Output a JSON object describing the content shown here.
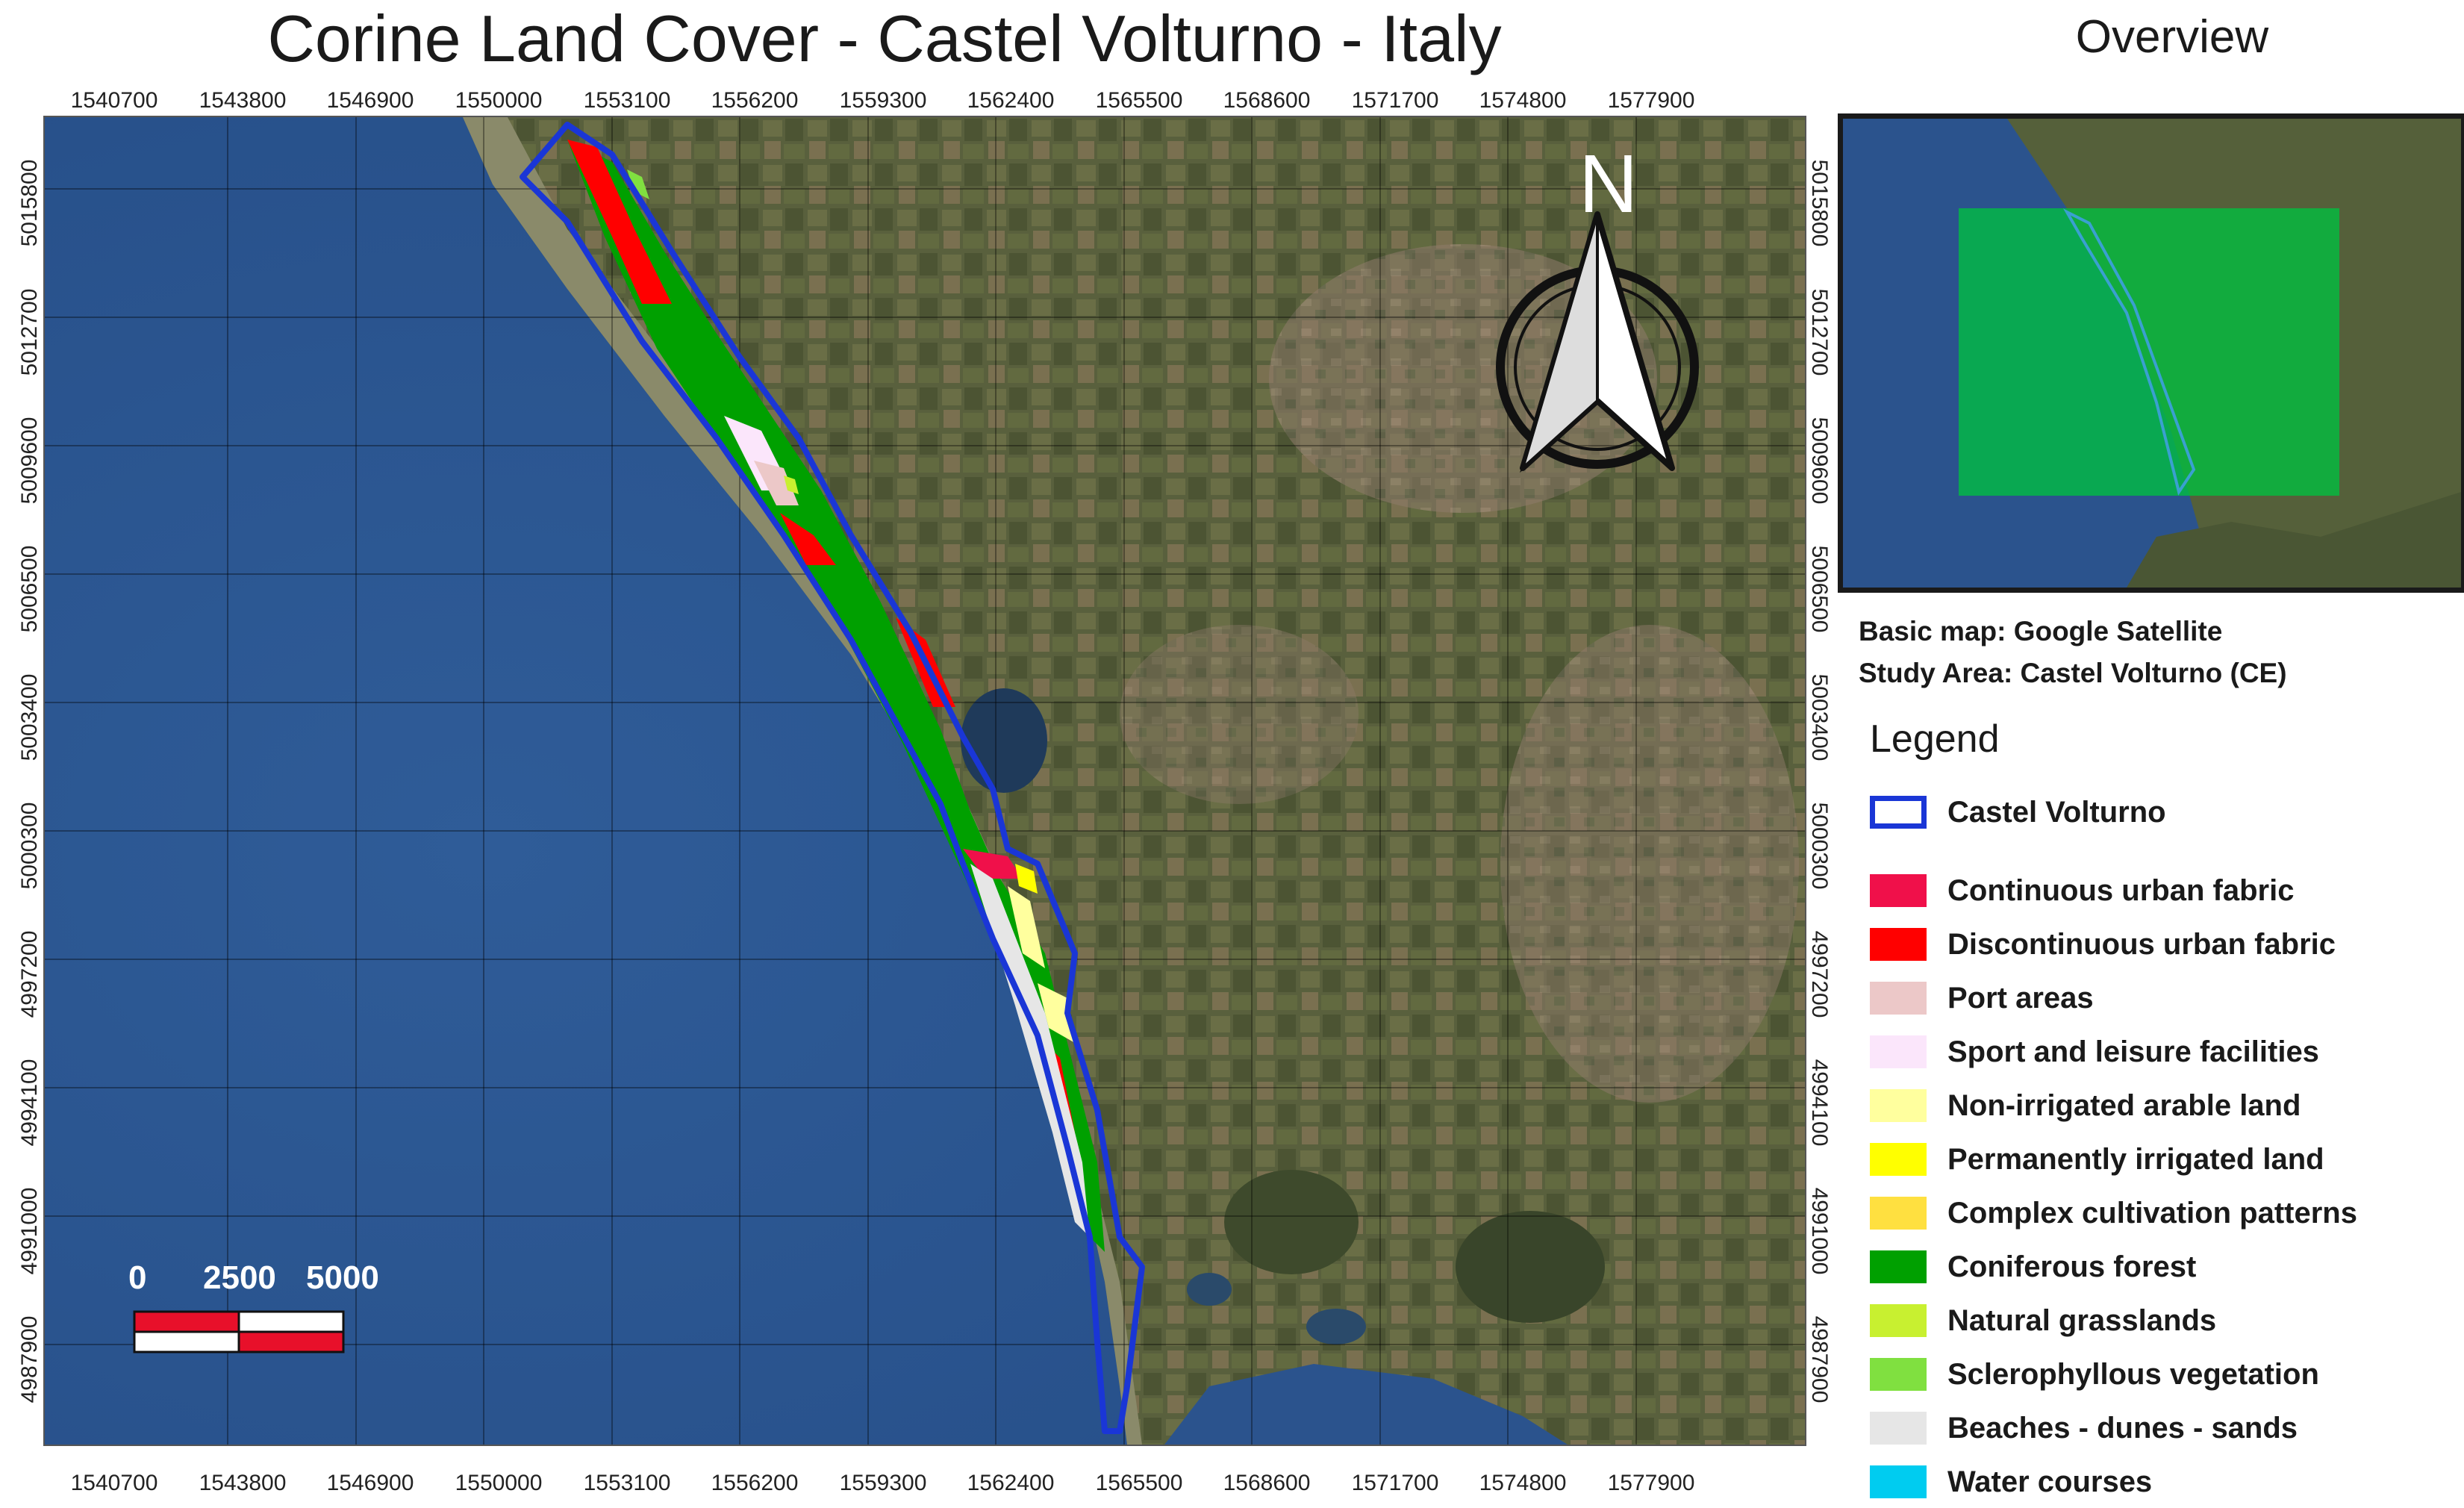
{
  "map": {
    "title": "Corine Land Cover - Castel Volturno - Italy",
    "x_ticks": [
      "1540700",
      "1543800",
      "1546900",
      "1550000",
      "1553100",
      "1556200",
      "1559300",
      "1562400",
      "1565500",
      "1568600",
      "1571700",
      "1574800",
      "1577900"
    ],
    "y_ticks": [
      "5015800",
      "5012700",
      "5009600",
      "5006500",
      "5003400",
      "5000300",
      "4997200",
      "4994100",
      "4991000",
      "4987900"
    ],
    "north_label": "N",
    "scale_bar": {
      "labels": [
        "0",
        "2500",
        "5000"
      ],
      "colors": [
        "#e8102a",
        "#ffffff"
      ]
    },
    "colors": {
      "sea": "#2b538d",
      "land": "#5a5e3c",
      "boundary": "#1a36d6"
    }
  },
  "overview": {
    "title": "Overview",
    "highlight_color": "#00c040"
  },
  "info": {
    "basic_map": "Basic map: Google Satellite",
    "study_area": "Study Area: Castel Volturno (CE)"
  },
  "legend": {
    "title": "Legend",
    "boundary": {
      "label": "Castel Volturno",
      "color": "#1a36d6"
    },
    "items": [
      {
        "label": "Continuous urban fabric",
        "color": "#f0104a"
      },
      {
        "label": "Discontinuous urban fabric",
        "color": "#ff0000"
      },
      {
        "label": "Port areas",
        "color": "#ecc8c8"
      },
      {
        "label": "Sport and leisure facilities",
        "color": "#fbe6fb"
      },
      {
        "label": "Non-irrigated arable land",
        "color": "#ffff9e"
      },
      {
        "label": "Permanently irrigated land",
        "color": "#ffff00"
      },
      {
        "label": "Complex cultivation patterns",
        "color": "#ffe040"
      },
      {
        "label": "Coniferous forest",
        "color": "#00a000"
      },
      {
        "label": "Natural grasslands",
        "color": "#c8f030"
      },
      {
        "label": "Sclerophyllous vegetation",
        "color": "#80e040"
      },
      {
        "label": "Beaches - dunes - sands",
        "color": "#e6e6e6"
      },
      {
        "label": "Water courses",
        "color": "#00ccf0"
      }
    ]
  }
}
